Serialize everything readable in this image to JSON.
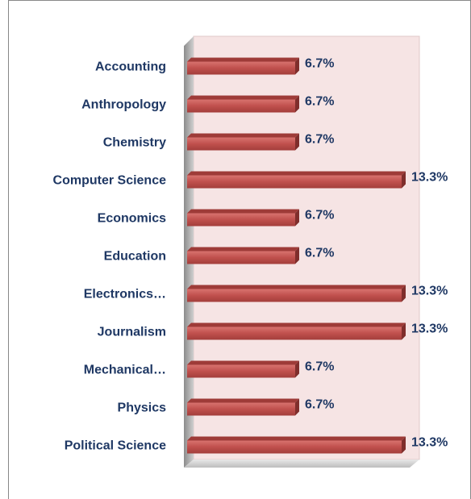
{
  "chart_data": {
    "type": "bar",
    "orientation": "horizontal",
    "categories": [
      "Accounting",
      "Anthropology",
      "Chemistry",
      "Computer Science",
      "Economics",
      "Education",
      "Electronics…",
      "Journalism",
      "Mechanical…",
      "Physics",
      "Political Science"
    ],
    "values": [
      6.7,
      6.7,
      6.7,
      13.3,
      6.7,
      6.7,
      13.3,
      13.3,
      6.7,
      6.7,
      13.3
    ],
    "value_labels": [
      "6.7%",
      "6.7%",
      "6.7%",
      "13.3%",
      "6.7%",
      "6.7%",
      "13.3%",
      "13.3%",
      "6.7%",
      "6.7%",
      "13.3%"
    ],
    "color": "#c0504d",
    "xlim": [
      0,
      14
    ]
  }
}
